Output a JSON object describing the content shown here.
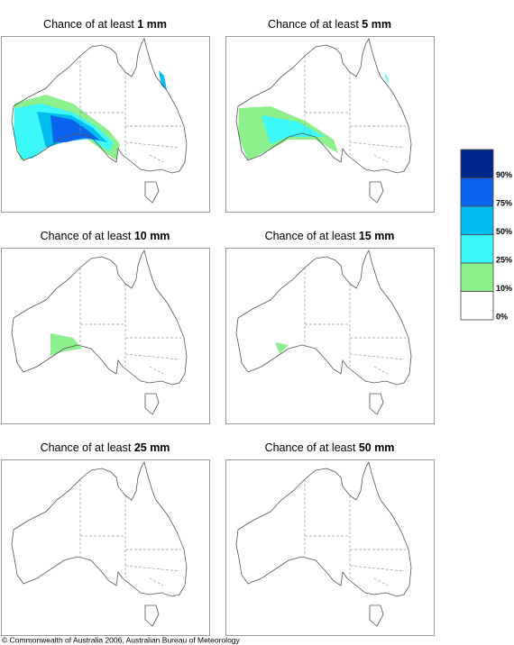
{
  "panels": [
    {
      "title": "Chance of at least",
      "amount": "1 mm"
    },
    {
      "title": "Chance of at least",
      "amount": "5 mm"
    },
    {
      "title": "Chance of at least",
      "amount": "10 mm"
    },
    {
      "title": "Chance of at least",
      "amount": "15 mm"
    },
    {
      "title": "Chance of at least",
      "amount": "25 mm"
    },
    {
      "title": "Chance of at least",
      "amount": "50 mm"
    }
  ],
  "legend": {
    "colors": [
      "#00288c",
      "#0a64f0",
      "#00bcf0",
      "#3cf8f8",
      "#8cf08c",
      "#ffffff"
    ],
    "labels": [
      "90%",
      "75%",
      "50%",
      "25%",
      "10%",
      "0%"
    ]
  },
  "footer": "© Commonwealth of Australia 2006, Australian Bureau of Meteorology"
}
